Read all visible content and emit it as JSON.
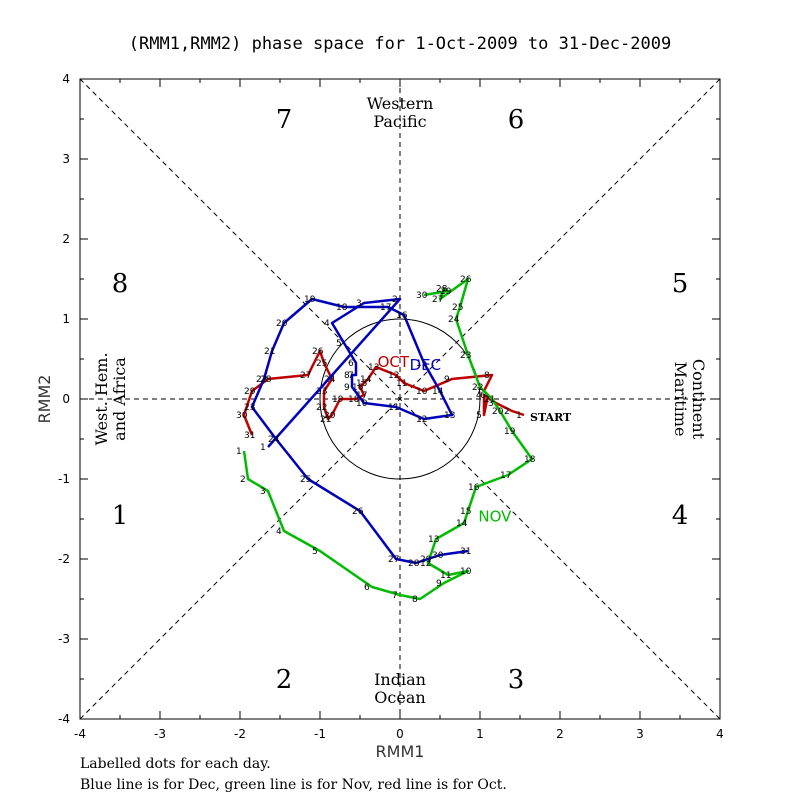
{
  "chart_data": {
    "type": "line",
    "title": "(RMM1,RMM2) phase space for  1-Oct-2009 to 31-Dec-2009",
    "xlabel": "RMM1",
    "ylabel": "RMM2",
    "xlim": [
      -4,
      4
    ],
    "ylim": [
      -4,
      4
    ],
    "xticks": [
      "-4",
      "-3",
      "-2",
      "-1",
      "0",
      "1",
      "2",
      "3",
      "4"
    ],
    "yticks": [
      "-4",
      "-3",
      "-2",
      "-1",
      "0",
      "1",
      "2",
      "3",
      "4"
    ],
    "phase_numbers": [
      {
        "label": "7",
        "x": -1.45,
        "y": 3.5
      },
      {
        "label": "6",
        "x": 1.45,
        "y": 3.5
      },
      {
        "label": "8",
        "x": -3.5,
        "y": 1.45
      },
      {
        "label": "5",
        "x": 3.5,
        "y": 1.45
      },
      {
        "label": "1",
        "x": -3.5,
        "y": -1.45
      },
      {
        "label": "4",
        "x": 3.5,
        "y": -1.45
      },
      {
        "label": "2",
        "x": -1.45,
        "y": -3.5
      },
      {
        "label": "3",
        "x": 1.45,
        "y": -3.5
      }
    ],
    "regions": {
      "top": [
        "Western",
        "Pacific"
      ],
      "bottom": [
        "Indian",
        "Ocean"
      ],
      "left": [
        "West. Hem.",
        "and Africa"
      ],
      "right": [
        "Maritime",
        "Continent"
      ]
    },
    "start_label": "START",
    "series": [
      {
        "name": "Oct",
        "color": "#c00000",
        "tag": "OCT",
        "tag_pos": [
          -0.28,
          0.4
        ],
        "points": [
          {
            "d": "1",
            "x": 1.55,
            "y": -0.2
          },
          {
            "d": "2",
            "x": 1.4,
            "y": -0.15
          },
          {
            "d": "3",
            "x": 1.2,
            "y": -0.05
          },
          {
            "d": "4",
            "x": 1.05,
            "y": 0.05
          },
          {
            "d": "5",
            "x": 1.05,
            "y": -0.2
          },
          {
            "d": "6",
            "x": 1.1,
            "y": 0.05
          },
          {
            "d": "7",
            "x": 1.05,
            "y": 0.1
          },
          {
            "d": "8",
            "x": 1.15,
            "y": 0.3
          },
          {
            "d": "9",
            "x": 0.65,
            "y": 0.25
          },
          {
            "d": "10",
            "x": 0.3,
            "y": 0.1
          },
          {
            "d": "11",
            "x": 0.05,
            "y": 0.2
          },
          {
            "d": "12",
            "x": -0.05,
            "y": 0.3
          },
          {
            "d": "13",
            "x": -0.3,
            "y": 0.4
          },
          {
            "d": "14",
            "x": -0.4,
            "y": 0.25
          },
          {
            "d": "15",
            "x": -0.45,
            "y": 0.2
          },
          {
            "d": "16",
            "x": -0.5,
            "y": 0.15
          },
          {
            "d": "17",
            "x": -0.45,
            "y": 0.05
          },
          {
            "d": "18",
            "x": -0.55,
            "y": 0.0
          },
          {
            "d": "19",
            "x": -0.75,
            "y": 0.0
          },
          {
            "d": "20",
            "x": -0.85,
            "y": -0.2
          },
          {
            "d": "21",
            "x": -0.9,
            "y": -0.25
          },
          {
            "d": "22",
            "x": -0.95,
            "y": -0.1
          },
          {
            "d": "23",
            "x": -0.95,
            "y": 0.1
          },
          {
            "d": "24",
            "x": -0.85,
            "y": 0.25
          },
          {
            "d": "25",
            "x": -0.95,
            "y": 0.45
          },
          {
            "d": "26",
            "x": -1.0,
            "y": 0.6
          },
          {
            "d": "27",
            "x": -1.15,
            "y": 0.3
          },
          {
            "d": "28",
            "x": -1.65,
            "y": 0.25
          },
          {
            "d": "29",
            "x": -1.85,
            "y": 0.1
          },
          {
            "d": "30",
            "x": -1.95,
            "y": -0.2
          },
          {
            "d": "31",
            "x": -1.85,
            "y": -0.45
          }
        ]
      },
      {
        "name": "Nov",
        "color": "#00bb00",
        "tag": "NOV",
        "tag_pos": [
          0.98,
          -1.53
        ],
        "points": [
          {
            "d": "1",
            "x": -1.95,
            "y": -0.65
          },
          {
            "d": "2",
            "x": -1.9,
            "y": -1.0
          },
          {
            "d": "3",
            "x": -1.65,
            "y": -1.15
          },
          {
            "d": "4",
            "x": -1.45,
            "y": -1.65
          },
          {
            "d": "5",
            "x": -1.0,
            "y": -1.9
          },
          {
            "d": "6",
            "x": -0.35,
            "y": -2.35
          },
          {
            "d": "7",
            "x": 0.0,
            "y": -2.45
          },
          {
            "d": "8",
            "x": 0.25,
            "y": -2.5
          },
          {
            "d": "9",
            "x": 0.55,
            "y": -2.3
          },
          {
            "d": "10",
            "x": 0.85,
            "y": -2.15
          },
          {
            "d": "11",
            "x": 0.6,
            "y": -2.2
          },
          {
            "d": "12",
            "x": 0.35,
            "y": -2.05
          },
          {
            "d": "13",
            "x": 0.45,
            "y": -1.75
          },
          {
            "d": "14",
            "x": 0.8,
            "y": -1.55
          },
          {
            "d": "15",
            "x": 0.85,
            "y": -1.4
          },
          {
            "d": "16",
            "x": 0.95,
            "y": -1.1
          },
          {
            "d": "17",
            "x": 1.35,
            "y": -0.95
          },
          {
            "d": "18",
            "x": 1.65,
            "y": -0.75
          },
          {
            "d": "19",
            "x": 1.4,
            "y": -0.4
          },
          {
            "d": "20",
            "x": 1.25,
            "y": -0.15
          },
          {
            "d": "21",
            "x": 1.15,
            "y": 0.0
          },
          {
            "d": "22",
            "x": 1.0,
            "y": 0.15
          },
          {
            "d": "23",
            "x": 0.85,
            "y": 0.55
          },
          {
            "d": "24",
            "x": 0.7,
            "y": 1.0
          },
          {
            "d": "25",
            "x": 0.75,
            "y": 1.15
          },
          {
            "d": "26",
            "x": 0.85,
            "y": 1.5
          },
          {
            "d": "27",
            "x": 0.5,
            "y": 1.25
          },
          {
            "d": "28",
            "x": 0.55,
            "y": 1.38
          },
          {
            "d": "29",
            "x": 0.6,
            "y": 1.35
          },
          {
            "d": "30",
            "x": 0.3,
            "y": 1.3
          }
        ]
      },
      {
        "name": "Dec",
        "color": "#0000bb",
        "tag": "DEC",
        "tag_pos": [
          0.12,
          0.36
        ],
        "points": [
          {
            "d": "1",
            "x": -1.65,
            "y": -0.6
          },
          {
            "d": "2",
            "x": 0.0,
            "y": 1.25
          },
          {
            "d": "3",
            "x": -0.45,
            "y": 1.2
          },
          {
            "d": "4",
            "x": -0.85,
            "y": 0.95
          },
          {
            "d": "5",
            "x": -0.7,
            "y": 0.7
          },
          {
            "d": "6",
            "x": -0.55,
            "y": 0.45
          },
          {
            "d": "7",
            "x": -0.55,
            "y": 0.3
          },
          {
            "d": "8",
            "x": -0.6,
            "y": 0.3
          },
          {
            "d": "9",
            "x": -0.6,
            "y": 0.15
          },
          {
            "d": "10",
            "x": -0.45,
            "y": -0.05
          },
          {
            "d": "11",
            "x": -0.05,
            "y": -0.1
          },
          {
            "d": "12",
            "x": 0.3,
            "y": -0.25
          },
          {
            "d": "13",
            "x": 0.65,
            "y": -0.2
          },
          {
            "d": "14",
            "x": 0.5,
            "y": 0.1
          },
          {
            "d": "15",
            "x": 0.3,
            "y": 0.45
          },
          {
            "d": "16",
            "x": 0.05,
            "y": 1.05
          },
          {
            "d": "17",
            "x": -0.15,
            "y": 1.15
          },
          {
            "d": "18",
            "x": -0.7,
            "y": 1.15
          },
          {
            "d": "19",
            "x": -1.1,
            "y": 1.25
          },
          {
            "d": "20",
            "x": -1.45,
            "y": 0.95
          },
          {
            "d": "21",
            "x": -1.6,
            "y": 0.6
          },
          {
            "d": "22",
            "x": -1.7,
            "y": 0.25
          },
          {
            "d": "23",
            "x": -1.85,
            "y": -0.1
          },
          {
            "d": "24",
            "x": -1.55,
            "y": -0.5
          },
          {
            "d": "25",
            "x": -1.15,
            "y": -1.0
          },
          {
            "d": "26",
            "x": -0.5,
            "y": -1.4
          },
          {
            "d": "27",
            "x": -0.05,
            "y": -2.0
          },
          {
            "d": "28",
            "x": 0.2,
            "y": -2.05
          },
          {
            "d": "29",
            "x": 0.35,
            "y": -2.0
          },
          {
            "d": "30",
            "x": 0.5,
            "y": -1.95
          },
          {
            "d": "31",
            "x": 0.85,
            "y": -1.9
          }
        ]
      }
    ]
  },
  "footer": {
    "line1": "Labelled dots for each day.",
    "line2": "Blue line is for Dec, green line is for Nov, red line is for Oct."
  }
}
